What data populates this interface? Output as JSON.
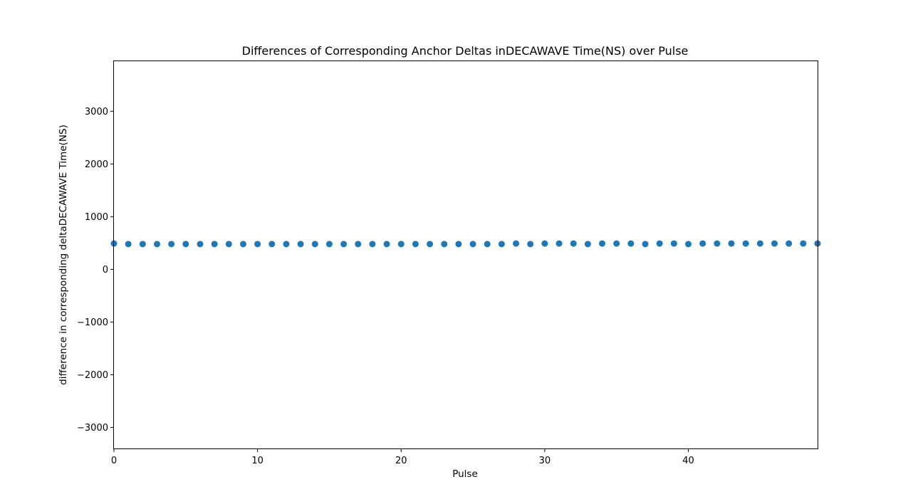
{
  "chart_data": {
    "type": "scatter",
    "title": "Differences of Corresponding Anchor Deltas inDECAWAVE Time(NS) over Pulse",
    "xlabel": "Pulse",
    "ylabel": "difference in corresponding deltaDECAWAVE Time(NS)",
    "xlim": [
      0,
      49
    ],
    "ylim": [
      -3400,
      3950
    ],
    "xticks": [
      0,
      10,
      20,
      30,
      40
    ],
    "yticks": [
      -3000,
      -2000,
      -1000,
      0,
      1000,
      2000,
      3000
    ],
    "ytick_labels": [
      "−3000",
      "−2000",
      "−1000",
      "0",
      "1000",
      "2000",
      "3000"
    ],
    "grid": false,
    "color": "#1f77b4",
    "x": [
      0,
      1,
      2,
      3,
      4,
      5,
      6,
      7,
      8,
      9,
      10,
      11,
      12,
      13,
      14,
      15,
      16,
      17,
      18,
      19,
      20,
      21,
      22,
      23,
      24,
      25,
      26,
      27,
      28,
      29,
      30,
      31,
      32,
      33,
      34,
      35,
      36,
      37,
      38,
      39,
      40,
      41,
      42,
      43,
      44,
      45,
      46,
      47,
      48,
      49
    ],
    "y": [
      490,
      480,
      480,
      480,
      480,
      480,
      480,
      480,
      480,
      480,
      480,
      480,
      480,
      480,
      480,
      480,
      480,
      480,
      480,
      480,
      480,
      480,
      480,
      480,
      480,
      480,
      480,
      480,
      490,
      480,
      490,
      490,
      490,
      480,
      490,
      490,
      490,
      480,
      490,
      490,
      480,
      490,
      490,
      490,
      490,
      490,
      490,
      490,
      490,
      490
    ]
  }
}
